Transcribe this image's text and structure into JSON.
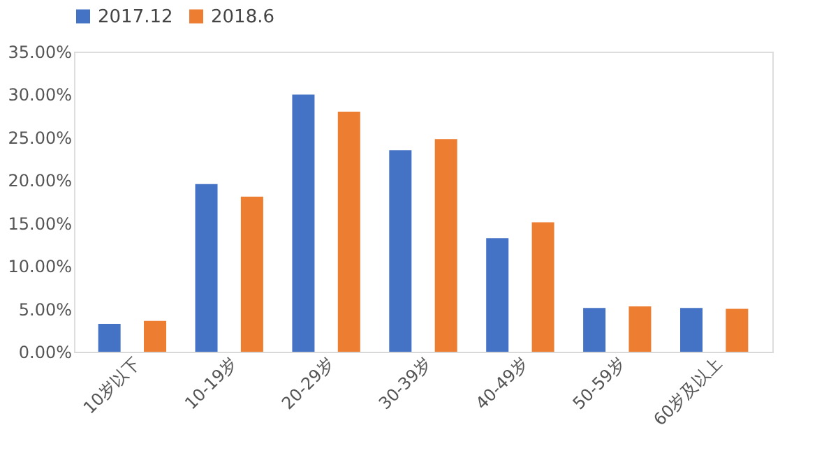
{
  "chart_data": {
    "type": "bar",
    "categories": [
      "10岁以下",
      "10-19岁",
      "20-29岁",
      "30-39岁",
      "40-49岁",
      "50-59岁",
      "60岁及以上"
    ],
    "series": [
      {
        "name": "2017.12",
        "color": "#4472c4",
        "values": [
          3.25,
          19.55,
          30.0,
          23.5,
          13.25,
          5.1,
          5.1
        ]
      },
      {
        "name": "2018.6",
        "color": "#ed7d31",
        "values": [
          3.6,
          18.1,
          28.0,
          24.8,
          15.1,
          5.3,
          5.0
        ]
      }
    ],
    "ylim": [
      0,
      35
    ],
    "yticks": [
      {
        "value": 0,
        "label": "0.00%"
      },
      {
        "value": 5,
        "label": "5.00%"
      },
      {
        "value": 10,
        "label": "10.00%"
      },
      {
        "value": 15,
        "label": "15.00%"
      },
      {
        "value": 20,
        "label": "20.00%"
      },
      {
        "value": 25,
        "label": "25.00%"
      },
      {
        "value": 30,
        "label": "30.00%"
      },
      {
        "value": 35,
        "label": "35.00%"
      }
    ],
    "grid": false,
    "legend": "top"
  }
}
